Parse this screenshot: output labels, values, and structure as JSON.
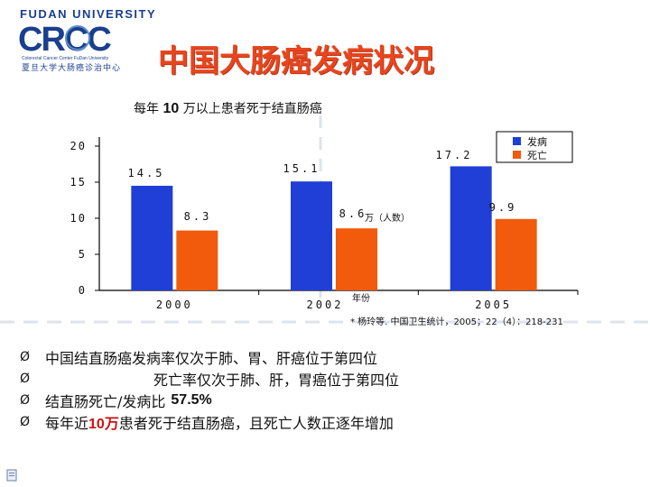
{
  "logo": {
    "university": "FUDAN UNIVERSITY",
    "brand": "CRCC",
    "english": "Colorectal Cancer Center FuDan University",
    "chinese": "夏旦大学大肠癌诊治中心"
  },
  "title": "中国大肠癌发病状况",
  "subtitle": {
    "prefix": "每年",
    "number": "10",
    "suffix": "万以上患者死于结直肠癌"
  },
  "source_note": "* 杨玲等. 中国卫生统计，2005；22（4）：218-231",
  "bullets": {
    "line1": "中国结直肠癌发病率仅次于肺、胃、肝癌位于第四位",
    "line2": "死亡率仅次于肺、肝，胃癌位于第四位",
    "line3_text": "结直肠死亡/发病比",
    "line3_value": "57.5%",
    "line4_a": "每年近",
    "line4_hl": "10万",
    "line4_b": "患者死于结直肠癌，且死亡人数正逐年增加",
    "marker": "Ø"
  },
  "chart_data": {
    "type": "bar",
    "categories": [
      "2000",
      "2002",
      "2005"
    ],
    "series": [
      {
        "name": "发病",
        "values": [
          14.5,
          15.1,
          17.2
        ],
        "color": "#1f3fd6",
        "labels": [
          "14.5",
          "15.1",
          "17.2"
        ]
      },
      {
        "name": "死亡",
        "values": [
          8.3,
          8.6,
          9.9
        ],
        "color": "#f25a0c",
        "labels": [
          "8.3",
          "8.6",
          "9.9"
        ]
      }
    ],
    "y_ticks": [
      "0",
      "5",
      "10",
      "15",
      "20"
    ],
    "ylim": [
      0,
      20
    ],
    "ylabel": "万（人数）",
    "xlabel": "年份",
    "legend_position": "top-right",
    "grid": false
  }
}
